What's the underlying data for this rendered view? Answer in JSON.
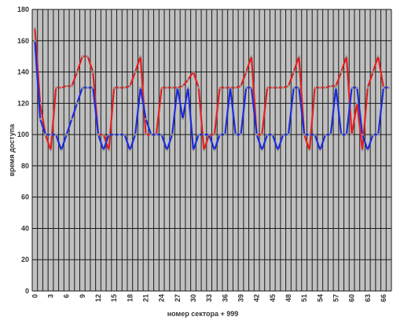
{
  "chart_data": {
    "type": "line",
    "title": "",
    "xlabel": "номер сектора + 999",
    "ylabel": "время доступа",
    "ylim": [
      0,
      180
    ],
    "yticks": [
      0,
      20,
      40,
      60,
      80,
      100,
      120,
      140,
      160,
      180
    ],
    "x_tick_labels": [
      "0",
      "3",
      "6",
      "9",
      "12",
      "15",
      "18",
      "21",
      "24",
      "27",
      "30",
      "33",
      "36",
      "39",
      "42",
      "45",
      "48",
      "51",
      "54",
      "57",
      "60",
      "63",
      "66"
    ],
    "grid": true,
    "legend": "none",
    "colors": {
      "plot_background": "#c0c0c0",
      "gridline": "#1a1a1a",
      "series_red": "#e02020",
      "series_blue": "#1c2cd8",
      "point": "#9a9a9a"
    },
    "x": [
      0,
      1,
      2,
      3,
      4,
      5,
      6,
      7,
      8,
      9,
      10,
      11,
      12,
      13,
      14,
      15,
      16,
      17,
      18,
      19,
      20,
      21,
      22,
      23,
      24,
      25,
      26,
      27,
      28,
      29,
      30,
      31,
      32,
      33,
      34,
      35,
      36,
      37,
      38,
      39,
      40,
      41,
      42,
      43,
      44,
      45,
      46,
      47,
      48,
      49,
      50,
      51,
      52,
      53,
      54,
      55,
      56,
      57,
      58,
      59,
      60,
      61,
      62,
      63,
      64,
      65,
      66,
      67
    ],
    "series": [
      {
        "color": "#e02020",
        "values": [
          168,
          120,
          100,
          90,
          130,
          130,
          131,
          131,
          140,
          150,
          150,
          140,
          100,
          100,
          90,
          130,
          130,
          130,
          131,
          140,
          150,
          100,
          100,
          100,
          130,
          130,
          130,
          130,
          131,
          135,
          140,
          130,
          90,
          100,
          100,
          130,
          130,
          130,
          130,
          131,
          140,
          150,
          100,
          100,
          130,
          130,
          130,
          130,
          131,
          140,
          150,
          100,
          90,
          130,
          130,
          130,
          131,
          131,
          140,
          150,
          100,
          120,
          90,
          130,
          140,
          150,
          130,
          130
        ]
      },
      {
        "color": "#1c2cd8",
        "values": [
          160,
          110,
          100,
          100,
          100,
          90,
          100,
          110,
          120,
          130,
          130,
          130,
          100,
          90,
          100,
          100,
          100,
          100,
          90,
          100,
          130,
          110,
          100,
          100,
          100,
          90,
          100,
          130,
          110,
          130,
          90,
          100,
          100,
          100,
          90,
          100,
          100,
          130,
          100,
          100,
          130,
          130,
          100,
          90,
          100,
          100,
          90,
          100,
          100,
          130,
          130,
          100,
          100,
          100,
          90,
          100,
          100,
          130,
          100,
          100,
          130,
          130,
          100,
          90,
          100,
          100,
          130,
          130
        ]
      }
    ]
  }
}
